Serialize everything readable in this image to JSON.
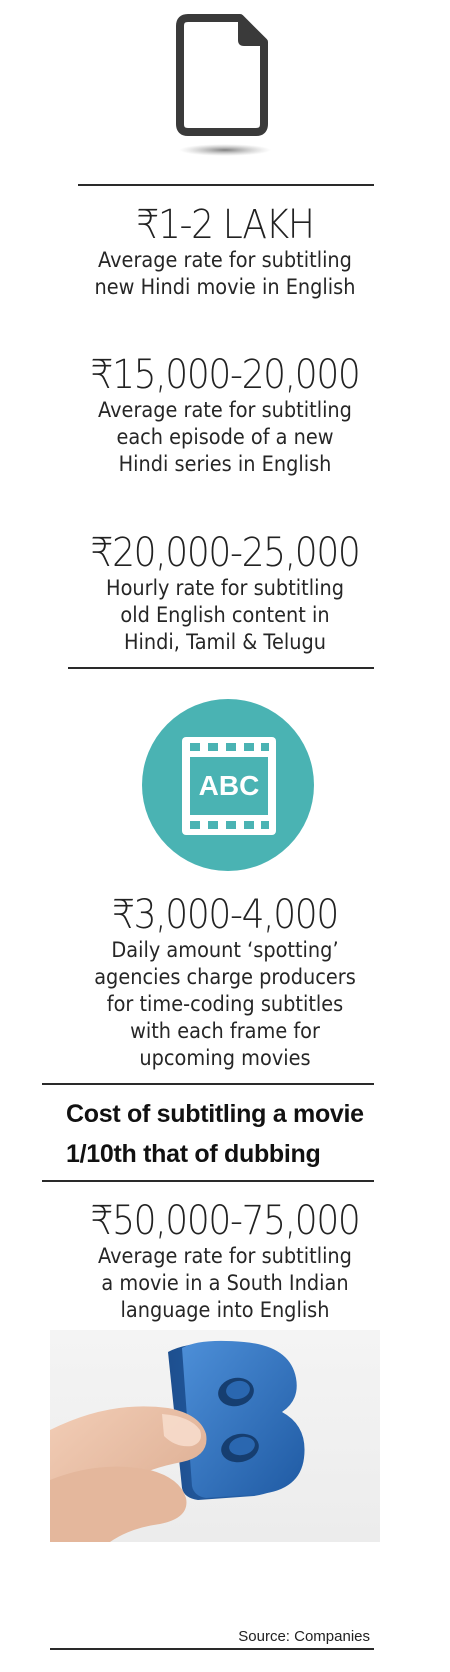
{
  "stats": [
    {
      "value": "₹1-2 LAKH",
      "lines": [
        "Average rate for subtitling",
        "new Hindi movie in English"
      ]
    },
    {
      "value": "₹15,000-20,000",
      "lines": [
        "Average rate for subtitling",
        "each episode of a new",
        "Hindi series in English"
      ]
    },
    {
      "value": "₹20,000-25,000",
      "lines": [
        "Hourly rate for subtitling",
        "old English content in",
        "Hindi, Tamil & Telugu"
      ]
    },
    {
      "value": "₹3,000-4,000",
      "lines": [
        "Daily amount ‘spotting’",
        "agencies charge producers",
        "for time-coding subtitles",
        "with each frame for",
        "upcoming movies"
      ]
    },
    {
      "value": "₹50,000-75,000",
      "lines": [
        "Average rate for subtitling",
        "a movie in a South Indian",
        "language into English"
      ]
    }
  ],
  "headline": {
    "line1": "Cost of subtitling a movie",
    "line2": "1/10th that of dubbing"
  },
  "film_icon_text": "ABC",
  "block_letter": "B",
  "source": "Source: Companies",
  "colors": {
    "teal": "#4ab3b3",
    "blue_block": "#2f6fb8",
    "rule": "#2a2a2a"
  },
  "icons": [
    "document-icon",
    "film-strip-abc-icon",
    "block-letter-b-photo"
  ]
}
